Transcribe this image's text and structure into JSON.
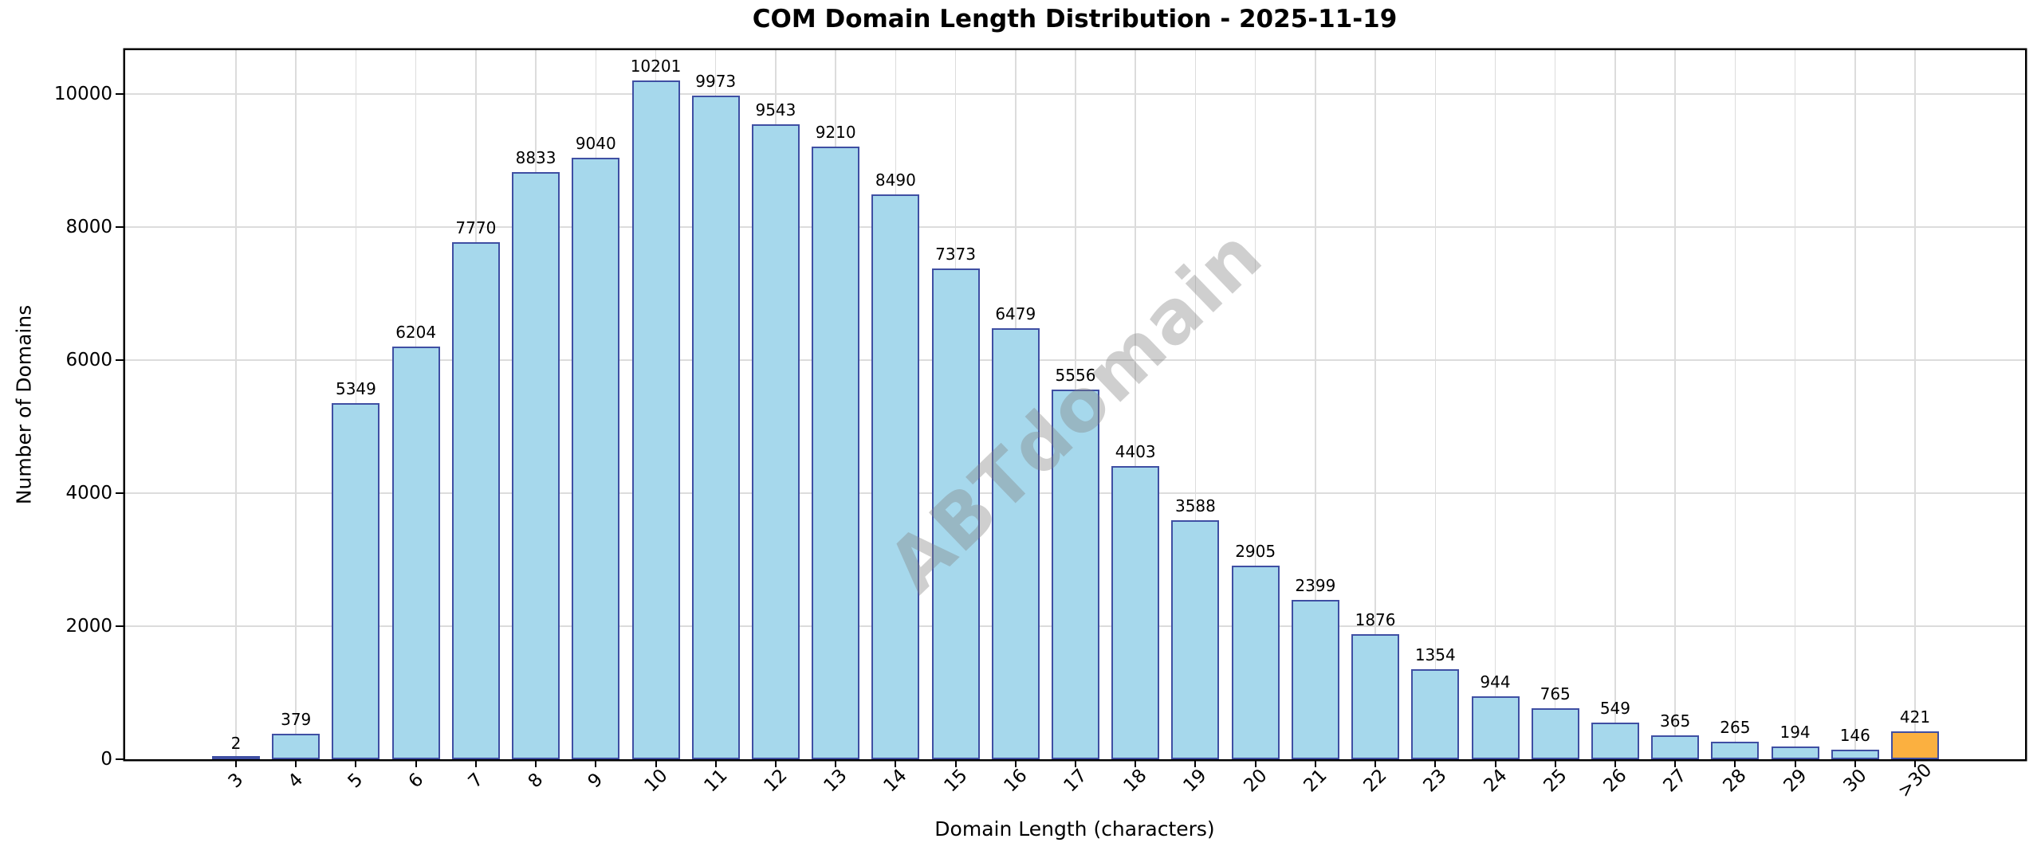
{
  "title": "COM Domain Length Distribution - 2025-11-19",
  "watermark_text": "ABTdomain",
  "chart_data": {
    "type": "bar",
    "title": "COM Domain Length Distribution - 2025-11-19",
    "xlabel": "Domain Length (characters)",
    "ylabel": "Number of Domains",
    "categories": [
      "3",
      "4",
      "5",
      "6",
      "7",
      "8",
      "9",
      "10",
      "11",
      "12",
      "13",
      "14",
      "15",
      "16",
      "17",
      "18",
      "19",
      "20",
      "21",
      "22",
      "23",
      "24",
      "25",
      "26",
      "27",
      "28",
      "29",
      "30",
      ">30"
    ],
    "values": [
      2,
      379,
      5349,
      6204,
      7770,
      8833,
      9040,
      10201,
      9973,
      9543,
      9210,
      8490,
      7373,
      6479,
      5556,
      4403,
      3588,
      2905,
      2399,
      1876,
      1354,
      944,
      765,
      549,
      365,
      265,
      194,
      146,
      421
    ],
    "ylim": [
      0,
      10660
    ],
    "yticks": [
      0,
      2000,
      4000,
      6000,
      8000,
      10000
    ],
    "grid": true,
    "legend": "none",
    "bar_fill_color": "#A6D8EC",
    "bar_edge_color": "#3F4FA3",
    "highlight_index": 28,
    "highlight_fill_color": "#FBB040",
    "grid_color": "#dcdcdc",
    "watermark": "ABTdomain"
  }
}
